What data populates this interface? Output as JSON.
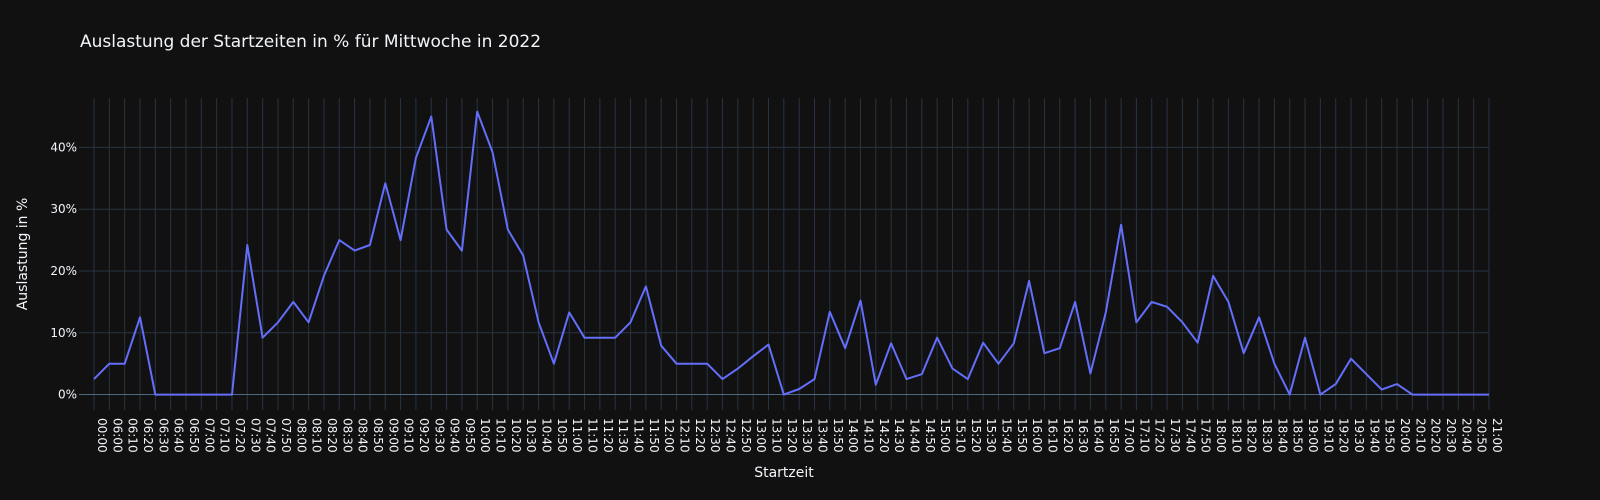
{
  "chart_data": {
    "type": "line",
    "title": "Auslastung der Startzeiten in % für Mittwoche in 2022",
    "xlabel": "Startzeit",
    "ylabel": "Auslastung in %",
    "y_ticks": [
      "0%",
      "10%",
      "20%",
      "30%",
      "40%"
    ],
    "ylim": [
      -2.5,
      48
    ],
    "grid": true,
    "colors": {
      "background": "#111111",
      "grid": "#283442",
      "line": "#636efa",
      "text": "#f2f5fa"
    },
    "x": [
      "00:00",
      "06:00",
      "06:10",
      "06:20",
      "06:30",
      "06:40",
      "06:50",
      "07:00",
      "07:10",
      "07:20",
      "07:30",
      "07:40",
      "07:50",
      "08:00",
      "08:10",
      "08:20",
      "08:30",
      "08:40",
      "08:50",
      "09:00",
      "09:10",
      "09:20",
      "09:30",
      "09:40",
      "09:50",
      "10:00",
      "10:10",
      "10:20",
      "10:30",
      "10:40",
      "10:50",
      "11:00",
      "11:10",
      "11:20",
      "11:30",
      "11:40",
      "11:50",
      "12:00",
      "12:10",
      "12:20",
      "12:30",
      "12:40",
      "12:50",
      "13:00",
      "13:10",
      "13:20",
      "13:30",
      "13:40",
      "13:50",
      "14:00",
      "14:10",
      "14:20",
      "14:30",
      "14:40",
      "14:50",
      "15:00",
      "15:10",
      "15:20",
      "15:30",
      "15:40",
      "15:50",
      "16:00",
      "16:10",
      "16:20",
      "16:30",
      "16:40",
      "16:50",
      "17:00",
      "17:10",
      "17:20",
      "17:30",
      "17:40",
      "17:50",
      "18:00",
      "18:10",
      "18:20",
      "18:30",
      "18:40",
      "18:50",
      "19:00",
      "19:10",
      "19:20",
      "19:30",
      "19:40",
      "19:50",
      "20:00",
      "20:10",
      "20:20",
      "20:30",
      "20:40",
      "20:50",
      "21:00"
    ],
    "series": [
      {
        "values": [
          2.5,
          5,
          5,
          12.5,
          0,
          0,
          0,
          0,
          0,
          0,
          24.2,
          9.2,
          11.7,
          15,
          11.7,
          19.2,
          25,
          23.3,
          24.2,
          34.2,
          25,
          38.3,
          45,
          26.7,
          23.3,
          45.8,
          39.2,
          26.7,
          22.5,
          11.7,
          5,
          13.3,
          9.2,
          9.2,
          9.2,
          11.7,
          17.5,
          7.9,
          5,
          5,
          5,
          2.5,
          4.2,
          6.2,
          8.1,
          0,
          0.9,
          2.5,
          13.4,
          7.5,
          15.2,
          1.6,
          8.3,
          2.5,
          3.3,
          9.2,
          4.2,
          2.5,
          8.4,
          5,
          8.3,
          18.4,
          6.7,
          7.5,
          15,
          3.4,
          13.3,
          27.5,
          11.7,
          15,
          14.2,
          11.7,
          8.4,
          19.2,
          15,
          6.7,
          12.5,
          5,
          0,
          9.2,
          0,
          1.7,
          5.8,
          3.3,
          0.8,
          1.7,
          0,
          0,
          0,
          0,
          0,
          0
        ]
      }
    ]
  }
}
